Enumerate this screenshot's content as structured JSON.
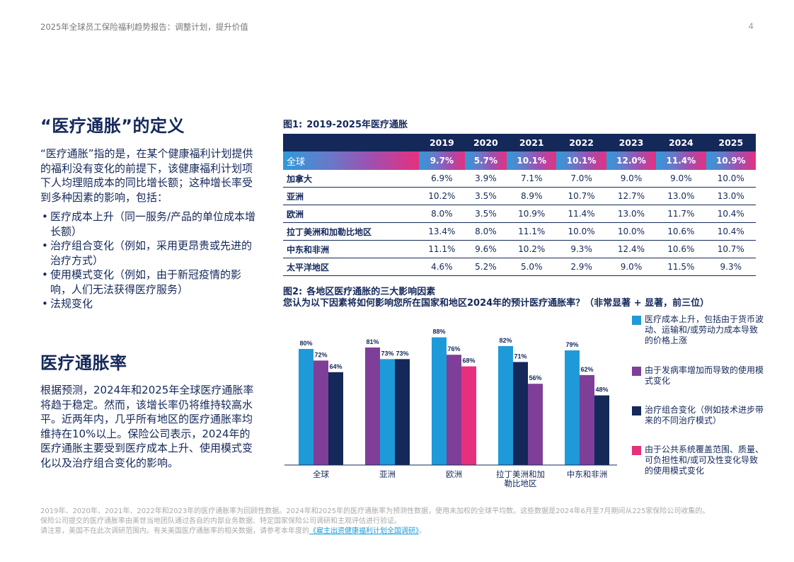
{
  "header": {
    "title": "2025年全球员工保险福利趋势报告：调整计划，提升价值",
    "page": "4"
  },
  "section1": {
    "heading": "“医疗通胀”的定义",
    "body": "“医疗通胀”指的是，在某个健康福利计划提供的福利没有变化的前提下，该健康福利计划项下人均理赔成本的同比增长额；这种增长率受到多种因素的影响，包括：",
    "bullets": [
      "医疗成本上升（同一服务/产品的单位成本增长额）",
      "治疗组合变化（例如，采用更昂贵或先进的治疗方式）",
      "使用模式变化（例如，由于新冠疫情的影响，人们无法获得医疗服务）",
      "法规变化"
    ]
  },
  "section2": {
    "heading": "医疗通胀率",
    "body": "根据预测，2024年和2025年全球医疗通胀率将趋于稳定。然而，该增长率仍将维持较高水平。近两年内，几乎所有地区的医疗通胀率均维持在10%以上。保险公司表示，2024年的医疗通胀主要受到医疗成本上升、使用模式变化以及治疗组合变化的影响。"
  },
  "figure1": {
    "label": "图1:",
    "title": "2019-2025年医疗通胀",
    "years": [
      "2019",
      "2020",
      "2021",
      "2022",
      "2023",
      "2024",
      "2025"
    ],
    "rows": [
      {
        "region": "全球",
        "values": [
          "9.7%",
          "5.7%",
          "10.1%",
          "10.1%",
          "12.0%",
          "11.4%",
          "10.9%"
        ]
      },
      {
        "region": "加拿大",
        "values": [
          "6.9%",
          "3.9%",
          "7.1%",
          "7.0%",
          "9.0%",
          "9.0%",
          "10.0%"
        ]
      },
      {
        "region": "亚洲",
        "values": [
          "10.2%",
          "3.5%",
          "8.9%",
          "10.7%",
          "12.7%",
          "13.0%",
          "13.0%"
        ]
      },
      {
        "region": "欧洲",
        "values": [
          "8.0%",
          "3.5%",
          "10.9%",
          "11.4%",
          "13.0%",
          "11.7%",
          "10.4%"
        ]
      },
      {
        "region": "拉丁美洲和加勒比地区",
        "values": [
          "13.4%",
          "8.0%",
          "11.1%",
          "10.0%",
          "10.0%",
          "10.6%",
          "10.4%"
        ]
      },
      {
        "region": "中东和非洲",
        "values": [
          "11.1%",
          "9.6%",
          "10.2%",
          "9.3%",
          "12.4%",
          "10.6%",
          "10.7%"
        ]
      },
      {
        "region": "太平洋地区",
        "values": [
          "4.6%",
          "5.2%",
          "5.0%",
          "2.9%",
          "9.0%",
          "11.5%",
          "9.3%"
        ]
      }
    ]
  },
  "figure2": {
    "label": "图2:",
    "title": "各地区医疗通胀的三大影响因素",
    "subtitle": "您认为以下因素将如何影响您所在国家和地区2024年的预计医疗通胀率？（非常显著 + 显著，前三位）"
  },
  "chart_data": {
    "type": "bar",
    "categories": [
      "全球",
      "亚洲",
      "欧洲",
      "拉丁美洲和加勒比地区",
      "中东和非洲"
    ],
    "category_labels": [
      [
        "全球"
      ],
      [
        "亚洲"
      ],
      [
        "欧洲"
      ],
      [
        "拉丁美洲和加",
        "勒比地区"
      ],
      [
        "中东和非洲"
      ]
    ],
    "ylim": [
      0,
      100
    ],
    "grid": false,
    "legend_position": "right",
    "colors": {
      "cost": "#1f9ad9",
      "usage": "#7f3f98",
      "mix": "#14285a",
      "public": "#e6307e"
    },
    "series": [
      {
        "name": "医疗成本上升，包括由于货币波动、运输和/或劳动力成本导致的价格上涨",
        "color": "#1f9ad9"
      },
      {
        "name": "由于发病率增加而导致的使用模式变化",
        "color": "#7f3f98"
      },
      {
        "name": "治疗组合变化（例如技术进步带来的不同治疗模式）",
        "color": "#14285a"
      },
      {
        "name": "由于公共系统覆盖范围、质量、可负担性和/或可及性变化导致的使用模式变化",
        "color": "#e6307e"
      }
    ],
    "bars": [
      [
        {
          "series": 0,
          "value": 80
        },
        {
          "series": 1,
          "value": 72
        },
        {
          "series": 2,
          "value": 64
        }
      ],
      [
        {
          "series": 1,
          "value": 81
        },
        {
          "series": 0,
          "value": 73
        },
        {
          "series": 2,
          "value": 73
        }
      ],
      [
        {
          "series": 0,
          "value": 88
        },
        {
          "series": 1,
          "value": 76
        },
        {
          "series": 3,
          "value": 68
        }
      ],
      [
        {
          "series": 0,
          "value": 82
        },
        {
          "series": 2,
          "value": 71
        },
        {
          "series": 1,
          "value": 56
        }
      ],
      [
        {
          "series": 0,
          "value": 79
        },
        {
          "series": 1,
          "value": 62
        },
        {
          "series": 2,
          "value": 48
        }
      ]
    ]
  },
  "footnotes": {
    "line1": "2019年、2020年、2021年、2022年和2023年的医疗通胀率为回顾性数据。2024年和2025年的医疗通胀率为预测性数据，使用未加权的全球平均数。这些数据是2024年6月至7月期间从225家保险公司收集的。",
    "line2": "保险公司提交的医疗通胀率由美世当地团队通过各自的内部业务数据、特定国家保险公司调研和主观评估进行验证。",
    "line3_prefix": "请注意，美国不在此次调研范围内。有关美国医疗通胀率的相关数据，请参考本年度的",
    "line3_link": "《雇主出资健康福利计划全国调研》",
    "line3_suffix": "。"
  }
}
